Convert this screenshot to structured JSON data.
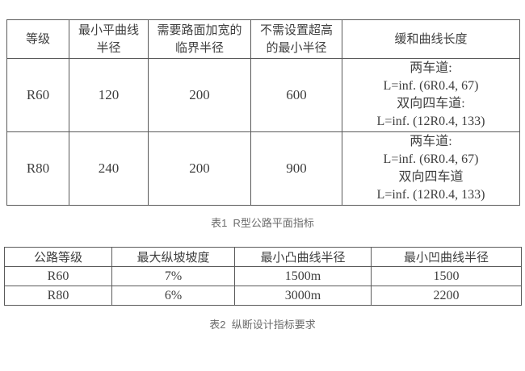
{
  "table1": {
    "caption": "表1  R型公路平面指标",
    "headers": [
      {
        "lines": [
          "等级"
        ]
      },
      {
        "lines": [
          "最小平曲线",
          "半径"
        ]
      },
      {
        "lines": [
          "需要路面加宽的",
          "临界半径"
        ]
      },
      {
        "lines": [
          "不需设置超高",
          "的最小半径"
        ]
      },
      {
        "lines": [
          "缓和曲线长度"
        ]
      }
    ],
    "rows": [
      {
        "cells": [
          "R60",
          "120",
          "200",
          "600"
        ],
        "transition": [
          "两车道:",
          "L=inf. (6R0.4, 67)",
          "双向四车道:",
          "L=inf. (12R0.4, 133)"
        ]
      },
      {
        "cells": [
          "R80",
          "240",
          "200",
          "900"
        ],
        "transition": [
          "两车道:",
          "L=inf. (6R0.4, 67)",
          "双向四车道",
          "L=inf. (12R0.4, 133)"
        ]
      }
    ]
  },
  "table2": {
    "caption": "表2  纵断设计指标要求",
    "headers": [
      "公路等级",
      "最大纵坡坡度",
      "最小凸曲线半径",
      "最小凹曲线半径"
    ],
    "rows": [
      [
        "R60",
        "7%",
        "1500m",
        "1500"
      ],
      [
        "R80",
        "6%",
        "3000m",
        "2200"
      ]
    ]
  }
}
